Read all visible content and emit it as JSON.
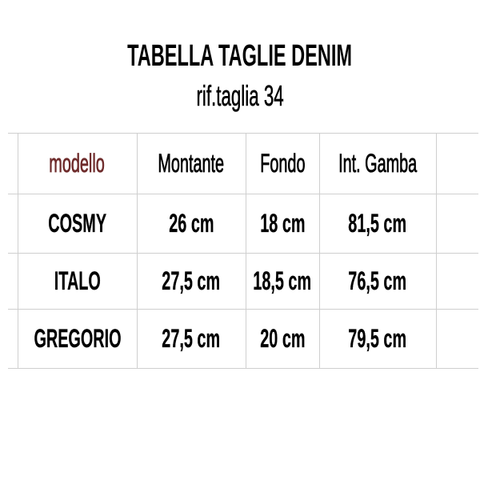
{
  "title": "TABELLA TAGLIE DENIM",
  "subtitle": "rif.taglia 34",
  "colors": {
    "model_header": "#6e2b2b",
    "grid": "#cfcfcf",
    "text": "#000000"
  },
  "table": {
    "headers": [
      "modello",
      "Montante",
      "Fondo",
      "Int. Gamba"
    ],
    "rows": [
      [
        "COSMY",
        "26 cm",
        "18 cm",
        "81,5 cm"
      ],
      [
        "ITALO",
        "27,5 cm",
        "18,5 cm",
        "76,5 cm"
      ],
      [
        "GREGORIO",
        "27,5 cm",
        "20 cm",
        "79,5 cm"
      ]
    ]
  }
}
